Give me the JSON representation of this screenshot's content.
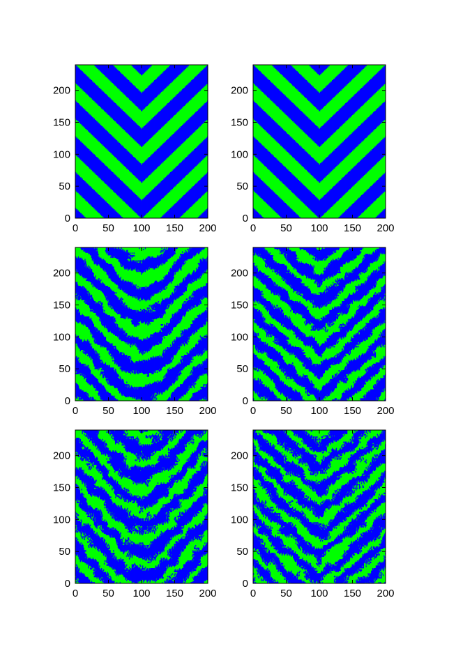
{
  "chart_data": [
    {
      "type": "heatmap",
      "title": "",
      "xlabel": "",
      "ylabel": "",
      "pattern": "chevron",
      "roughness": 0,
      "period": 56,
      "xlim": [
        0,
        200
      ],
      "ylim": [
        0,
        240
      ],
      "xticks": [
        0,
        50,
        100,
        150,
        200
      ],
      "yticks": [
        0,
        50,
        100,
        150,
        200
      ],
      "xtick_labels": [
        "0",
        "50",
        "100",
        "150",
        "200"
      ],
      "ytick_labels": [
        "0",
        "50",
        "100",
        "150",
        "200"
      ],
      "colors": [
        "#0000ff",
        "#00ff00"
      ]
    },
    {
      "type": "heatmap",
      "title": "",
      "xlabel": "",
      "ylabel": "",
      "pattern": "chevron",
      "roughness": 0,
      "period": 56,
      "xlim": [
        0,
        200
      ],
      "ylim": [
        0,
        240
      ],
      "xticks": [
        0,
        50,
        100,
        150,
        200
      ],
      "yticks": [
        0,
        50,
        100,
        150,
        200
      ],
      "xtick_labels": [
        "0",
        "50",
        "100",
        "150",
        "200"
      ],
      "ytick_labels": [
        "0",
        "50",
        "100",
        "150",
        "200"
      ],
      "colors": [
        "#0000ff",
        "#00ff00"
      ]
    },
    {
      "type": "heatmap",
      "title": "",
      "xlabel": "",
      "ylabel": "",
      "pattern": "smooth-v",
      "roughness": 1,
      "period": 40,
      "xlim": [
        0,
        200
      ],
      "ylim": [
        0,
        240
      ],
      "xticks": [
        0,
        50,
        100,
        150,
        200
      ],
      "yticks": [
        0,
        50,
        100,
        150,
        200
      ],
      "xtick_labels": [
        "0",
        "50",
        "100",
        "150",
        "200"
      ],
      "ytick_labels": [
        "0",
        "50",
        "100",
        "150",
        "200"
      ],
      "colors": [
        "#0000ff",
        "#00ff00"
      ]
    },
    {
      "type": "heatmap",
      "title": "",
      "xlabel": "",
      "ylabel": "",
      "pattern": "sharp-v",
      "roughness": 1,
      "period": 36,
      "xlim": [
        0,
        200
      ],
      "ylim": [
        0,
        240
      ],
      "xticks": [
        0,
        50,
        100,
        150,
        200
      ],
      "yticks": [
        0,
        50,
        100,
        150,
        200
      ],
      "xtick_labels": [
        "0",
        "50",
        "100",
        "150",
        "200"
      ],
      "ytick_labels": [
        "0",
        "50",
        "100",
        "150",
        "200"
      ],
      "colors": [
        "#0000ff",
        "#00ff00"
      ]
    },
    {
      "type": "heatmap",
      "title": "",
      "xlabel": "",
      "ylabel": "",
      "pattern": "smooth-v",
      "roughness": 1.4,
      "period": 40,
      "xlim": [
        0,
        200
      ],
      "ylim": [
        0,
        240
      ],
      "xticks": [
        0,
        50,
        100,
        150,
        200
      ],
      "yticks": [
        0,
        50,
        100,
        150,
        200
      ],
      "xtick_labels": [
        "0",
        "50",
        "100",
        "150",
        "200"
      ],
      "ytick_labels": [
        "0",
        "50",
        "100",
        "150",
        "200"
      ],
      "colors": [
        "#0000ff",
        "#00ff00"
      ]
    },
    {
      "type": "heatmap",
      "title": "",
      "xlabel": "",
      "ylabel": "",
      "pattern": "sharp-v",
      "roughness": 1.4,
      "period": 34,
      "xlim": [
        0,
        200
      ],
      "ylim": [
        0,
        240
      ],
      "xticks": [
        0,
        50,
        100,
        150,
        200
      ],
      "yticks": [
        0,
        50,
        100,
        150,
        200
      ],
      "xtick_labels": [
        "0",
        "50",
        "100",
        "150",
        "200"
      ],
      "ytick_labels": [
        "0",
        "50",
        "100",
        "150",
        "200"
      ],
      "colors": [
        "#0000ff",
        "#00ff00"
      ]
    }
  ]
}
